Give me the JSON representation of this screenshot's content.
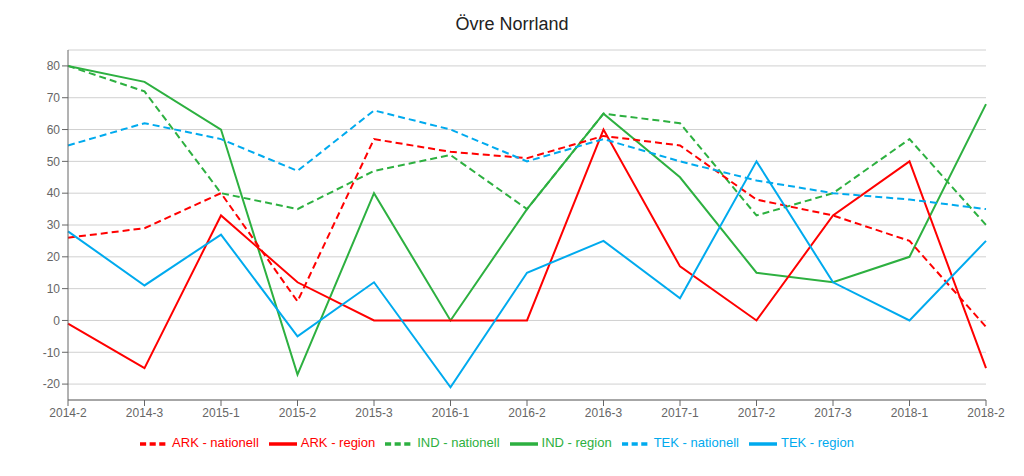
{
  "chart_data": {
    "type": "line",
    "title": "Övre Norrland",
    "categories": [
      "2014-2",
      "2014-3",
      "2015-1",
      "2015-2",
      "2015-3",
      "2016-1",
      "2016-2",
      "2016-3",
      "2017-1",
      "2017-2",
      "2017-3",
      "2018-1",
      "2018-2"
    ],
    "series": [
      {
        "name": "IND - region",
        "color": "#2DB040",
        "line_style": "solid",
        "values": [
          80,
          75,
          60,
          -17,
          40,
          0,
          35,
          65,
          45,
          15,
          12,
          20,
          68
        ]
      },
      {
        "name": "IND - nationell",
        "color": "#2DB040",
        "line_style": "dashed",
        "values": [
          80,
          72,
          40,
          35,
          47,
          52,
          35,
          65,
          62,
          33,
          40,
          57,
          30
        ]
      },
      {
        "name": "ARK - region",
        "color": "#FF0000",
        "line_style": "solid",
        "values": [
          -1,
          -15,
          33,
          12,
          0,
          0,
          0,
          60,
          17,
          0,
          33,
          50,
          -15
        ]
      },
      {
        "name": "ARK - nationell",
        "color": "#FF0000",
        "line_style": "dashed",
        "values": [
          26,
          29,
          40,
          6,
          57,
          53,
          51,
          58,
          55,
          38,
          33,
          25,
          -2
        ]
      },
      {
        "name": "TEK - region",
        "color": "#00AAEE",
        "line_style": "solid",
        "values": [
          28,
          11,
          27,
          -5,
          12,
          -21,
          15,
          25,
          7,
          50,
          12,
          0,
          25
        ]
      },
      {
        "name": "TEK - nationell",
        "color": "#00AAEE",
        "line_style": "dashed",
        "values": [
          55,
          62,
          57,
          47,
          66,
          60,
          50,
          57,
          50,
          44,
          40,
          38,
          35
        ]
      }
    ],
    "ylim": [
      -25,
      85
    ],
    "yticks": [
      -20,
      -10,
      0,
      10,
      20,
      30,
      40,
      50,
      60,
      70,
      80
    ],
    "grid": true,
    "legend": "bottom"
  }
}
